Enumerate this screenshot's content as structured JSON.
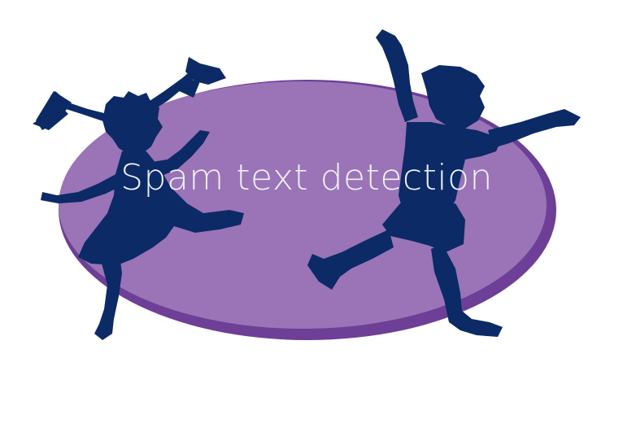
{
  "logo": {
    "title": "Spam text detection",
    "colors": {
      "ellipse_fill": "#9a74b6",
      "ellipse_rim": "#6e3f96",
      "silhouette": "#0b2a66",
      "title_text": "#eef0f6",
      "background": "#ffffff"
    },
    "figures": [
      "girl-silhouette",
      "boy-silhouette"
    ]
  }
}
